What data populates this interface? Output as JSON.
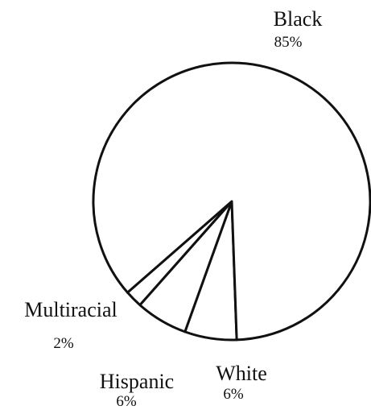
{
  "chart_data": {
    "type": "pie",
    "title": "",
    "slices": [
      {
        "label": "Black",
        "value": 85,
        "value_label": "85%"
      },
      {
        "label": "White",
        "value": 6,
        "value_label": "6%"
      },
      {
        "label": "Hispanic",
        "value": 6,
        "value_label": "6%"
      },
      {
        "label": "Multiracial",
        "value": 2,
        "value_label": "2%"
      }
    ],
    "colors": {
      "fill": "#ffffff",
      "stroke": "#111111"
    },
    "legend": "none"
  }
}
